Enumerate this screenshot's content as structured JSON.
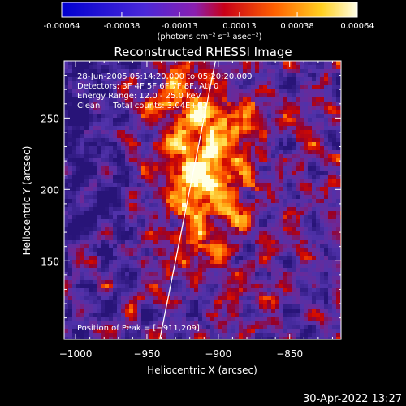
{
  "colorbar": {
    "tick_labels": [
      "-0.00064",
      "-0.00038",
      "-0.00013",
      "0.00013",
      "0.00038",
      "0.00064"
    ],
    "units": "(photons cm⁻² s⁻¹ asec⁻²)",
    "range": [
      -0.00064,
      0.00064
    ]
  },
  "chart_data": {
    "type": "heatmap",
    "title": "Reconstructed RHESSI Image",
    "xlabel": "Heliocentric X (arcsec)",
    "ylabel": "Heliocentric Y (arcsec)",
    "xlim": [
      -1008,
      -814
    ],
    "ylim": [
      95,
      290
    ],
    "xticks": [
      -1000,
      -950,
      -900,
      -850
    ],
    "yticks": [
      150,
      200,
      250
    ],
    "xtick_labels": [
      "−1000",
      "−950",
      "−900",
      "−850"
    ],
    "ytick_labels": [
      "150",
      "200",
      "250"
    ],
    "info_lines": [
      "28-Jun-2005 05:14:20.000 to 05:20:20.000",
      "Detectors: 3F 4F 5F 6F 7F 8F, Att 0",
      "Energy Range: 12.0 - 25.0 keV",
      "Clean     Total counts: 3.04E+03"
    ],
    "peak_text": "Position of Peak = [−911,209]",
    "peak": [
      -911,
      209
    ],
    "limb_line": [
      [
        -941,
        95
      ],
      [
        -902,
        290
      ]
    ]
  },
  "footer": {
    "timestamp": "30-Apr-2022 13:27"
  }
}
